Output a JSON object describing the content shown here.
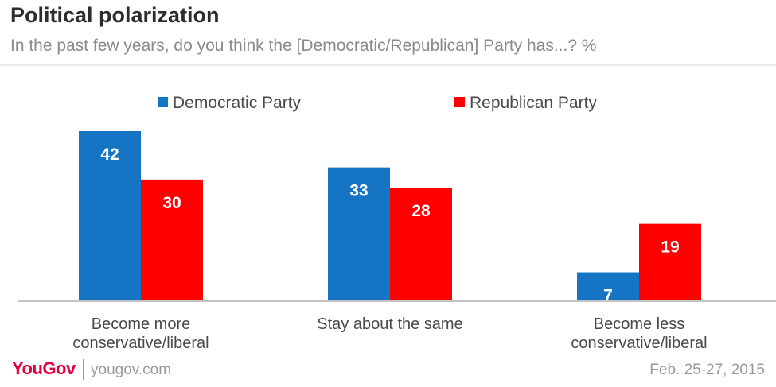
{
  "header": {
    "title": "Political polarization",
    "subtitle": "In the past few years, do you think the [Democratic/Republican] Party has...? %"
  },
  "footer": {
    "brand": "YouGov",
    "url": "yougov.com",
    "date": "Feb. 25-27, 2015"
  },
  "colors": {
    "democratic": "#1574c4",
    "republican": "#ff0000",
    "axis": "#c4c4c4",
    "text": "#333333"
  },
  "chart_data": {
    "type": "bar",
    "title": "Political polarization",
    "subtitle": "In the past few years, do you think the [Democratic/Republican] Party has...? %",
    "categories": [
      [
        "Become more",
        "conservative/liberal"
      ],
      [
        "Stay about the same"
      ],
      [
        "Become less",
        "conservative/liberal"
      ]
    ],
    "series": [
      {
        "name": "Democratic Party",
        "values": [
          42,
          33,
          7
        ]
      },
      {
        "name": "Republican Party",
        "values": [
          30,
          28,
          19
        ]
      }
    ],
    "ylim": [
      0,
      42
    ],
    "grid": false,
    "legend": "top-center",
    "data_labels": true
  }
}
